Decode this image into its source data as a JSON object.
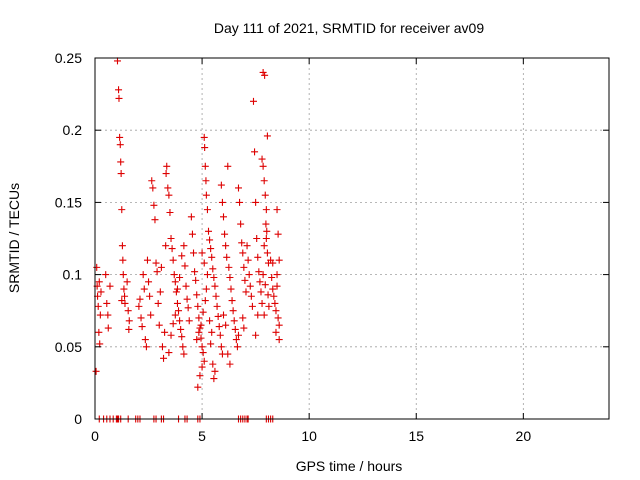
{
  "chart_data": {
    "type": "scatter",
    "title": "Day 111 of 2021, SRMTID for receiver av09",
    "xlabel": "GPS time / hours",
    "ylabel": "SRMTID / TECUs",
    "xlim": [
      0,
      24
    ],
    "ylim": [
      0,
      0.25
    ],
    "xticks": [
      0,
      5,
      10,
      15,
      20
    ],
    "xtick_labels": [
      "0",
      "5",
      "10",
      "15",
      "20"
    ],
    "yticks": [
      0,
      0.05,
      0.1,
      0.15,
      0.2,
      0.25
    ],
    "ytick_labels": [
      "0",
      "0.05",
      "0.1",
      "0.15",
      "0.2",
      "0.25"
    ],
    "grid": true,
    "marker": "+",
    "color": "#dd0000",
    "series": [
      {
        "name": "SRMTID",
        "points": [
          [
            0.05,
            0.033
          ],
          [
            0.08,
            0.105
          ],
          [
            0.1,
            0.092
          ],
          [
            0.12,
            0.085
          ],
          [
            0.15,
            0.078
          ],
          [
            0.18,
            0.06
          ],
          [
            0.2,
            0.095
          ],
          [
            0.22,
            0.052
          ],
          [
            0.25,
            0.072
          ],
          [
            0.28,
            0.088
          ],
          [
            0.5,
            0.1
          ],
          [
            0.55,
            0.08
          ],
          [
            0.6,
            0.072
          ],
          [
            0.62,
            0.063
          ],
          [
            0.7,
            0.092
          ],
          [
            1.1,
            0.228
          ],
          [
            1.12,
            0.222
          ],
          [
            1.15,
            0.195
          ],
          [
            1.18,
            0.19
          ],
          [
            1.2,
            0.178
          ],
          [
            1.22,
            0.17
          ],
          [
            1.25,
            0.145
          ],
          [
            1.05,
            0.248
          ],
          [
            1.28,
            0.12
          ],
          [
            1.3,
            0.11
          ],
          [
            1.32,
            0.1
          ],
          [
            1.35,
            0.09
          ],
          [
            1.38,
            0.085
          ],
          [
            1.4,
            0.08
          ],
          [
            1.25,
            0.082
          ],
          [
            1.5,
            0.095
          ],
          [
            1.55,
            0.075
          ],
          [
            1.6,
            0.068
          ],
          [
            1.58,
            0.062
          ],
          [
            2.05,
            0.078
          ],
          [
            2.1,
            0.083
          ],
          [
            2.15,
            0.07
          ],
          [
            2.2,
            0.064
          ],
          [
            2.25,
            0.1
          ],
          [
            2.3,
            0.09
          ],
          [
            2.35,
            0.055
          ],
          [
            2.4,
            0.05
          ],
          [
            2.45,
            0.11
          ],
          [
            2.5,
            0.095
          ],
          [
            2.55,
            0.085
          ],
          [
            2.6,
            0.072
          ],
          [
            2.65,
            0.165
          ],
          [
            2.7,
            0.16
          ],
          [
            2.75,
            0.148
          ],
          [
            2.8,
            0.138
          ],
          [
            2.85,
            0.108
          ],
          [
            2.9,
            0.102
          ],
          [
            2.95,
            0.08
          ],
          [
            3.0,
            0.065
          ],
          [
            3.05,
            0.088
          ],
          [
            3.1,
            0.105
          ],
          [
            3.15,
            0.05
          ],
          [
            3.2,
            0.042
          ],
          [
            3.25,
            0.06
          ],
          [
            3.3,
            0.12
          ],
          [
            3.32,
            0.17
          ],
          [
            3.35,
            0.175
          ],
          [
            3.4,
            0.16
          ],
          [
            3.45,
            0.155
          ],
          [
            3.5,
            0.143
          ],
          [
            3.55,
            0.125
          ],
          [
            3.6,
            0.118
          ],
          [
            3.65,
            0.11
          ],
          [
            3.7,
            0.1
          ],
          [
            3.75,
            0.095
          ],
          [
            3.8,
            0.088
          ],
          [
            3.85,
            0.08
          ],
          [
            3.9,
            0.075
          ],
          [
            3.95,
            0.068
          ],
          [
            4.0,
            0.062
          ],
          [
            4.05,
            0.057
          ],
          [
            4.1,
            0.05
          ],
          [
            4.15,
            0.045
          ],
          [
            3.45,
            0.046
          ],
          [
            3.55,
            0.058
          ],
          [
            3.65,
            0.066
          ],
          [
            3.75,
            0.072
          ],
          [
            3.85,
            0.09
          ],
          [
            3.95,
            0.098
          ],
          [
            4.05,
            0.113
          ],
          [
            4.15,
            0.12
          ],
          [
            4.2,
            0.106
          ],
          [
            4.25,
            0.092
          ],
          [
            4.3,
            0.083
          ],
          [
            4.35,
            0.077
          ],
          [
            4.4,
            0.068
          ],
          [
            4.5,
            0.14
          ],
          [
            4.55,
            0.128
          ],
          [
            4.6,
            0.115
          ],
          [
            4.65,
            0.102
          ],
          [
            4.7,
            0.096
          ],
          [
            4.75,
            0.086
          ],
          [
            4.8,
            0.078
          ],
          [
            4.85,
            0.07
          ],
          [
            4.9,
            0.063
          ],
          [
            4.95,
            0.056
          ],
          [
            5.0,
            0.05
          ],
          [
            5.05,
            0.046
          ],
          [
            5.1,
            0.04
          ],
          [
            4.8,
            0.022
          ],
          [
            4.9,
            0.03
          ],
          [
            5.0,
            0.036
          ],
          [
            4.75,
            0.055
          ],
          [
            4.85,
            0.06
          ],
          [
            4.95,
            0.065
          ],
          [
            5.05,
            0.074
          ],
          [
            5.15,
            0.082
          ],
          [
            5.2,
            0.09
          ],
          [
            5.25,
            0.1
          ],
          [
            5.1,
            0.108
          ],
          [
            5.0,
            0.115
          ],
          [
            5.1,
            0.195
          ],
          [
            5.12,
            0.188
          ],
          [
            5.15,
            0.175
          ],
          [
            5.18,
            0.165
          ],
          [
            5.2,
            0.155
          ],
          [
            5.25,
            0.145
          ],
          [
            5.3,
            0.13
          ],
          [
            5.35,
            0.124
          ],
          [
            5.4,
            0.118
          ],
          [
            5.45,
            0.112
          ],
          [
            5.5,
            0.104
          ],
          [
            5.55,
            0.098
          ],
          [
            5.6,
            0.092
          ],
          [
            5.65,
            0.085
          ],
          [
            5.7,
            0.078
          ],
          [
            5.75,
            0.071
          ],
          [
            5.8,
            0.064
          ],
          [
            5.85,
            0.058
          ],
          [
            5.9,
            0.05
          ],
          [
            5.95,
            0.045
          ],
          [
            5.5,
            0.038
          ],
          [
            5.55,
            0.028
          ],
          [
            5.6,
            0.033
          ],
          [
            5.4,
            0.052
          ],
          [
            5.45,
            0.06
          ],
          [
            5.35,
            0.068
          ],
          [
            5.9,
            0.162
          ],
          [
            5.95,
            0.15
          ],
          [
            6.0,
            0.14
          ],
          [
            6.05,
            0.128
          ],
          [
            6.1,
            0.12
          ],
          [
            6.15,
            0.112
          ],
          [
            6.2,
            0.175
          ],
          [
            6.25,
            0.105
          ],
          [
            6.3,
            0.098
          ],
          [
            6.35,
            0.09
          ],
          [
            6.4,
            0.082
          ],
          [
            6.45,
            0.075
          ],
          [
            6.5,
            0.068
          ],
          [
            6.55,
            0.062
          ],
          [
            6.6,
            0.055
          ],
          [
            6.65,
            0.05
          ],
          [
            6.7,
            0.058
          ],
          [
            6.2,
            0.045
          ],
          [
            6.3,
            0.038
          ],
          [
            6.1,
            0.065
          ],
          [
            6.0,
            0.072
          ],
          [
            6.7,
            0.16
          ],
          [
            6.75,
            0.15
          ],
          [
            6.8,
            0.135
          ],
          [
            6.85,
            0.122
          ],
          [
            6.9,
            0.115
          ],
          [
            6.95,
            0.105
          ],
          [
            7.0,
            0.096
          ],
          [
            7.05,
            0.088
          ],
          [
            7.1,
            0.12
          ],
          [
            7.15,
            0.11
          ],
          [
            7.2,
            0.1
          ],
          [
            7.25,
            0.092
          ],
          [
            7.3,
            0.085
          ],
          [
            7.35,
            0.078
          ],
          [
            6.9,
            0.07
          ],
          [
            6.95,
            0.063
          ],
          [
            7.4,
            0.22
          ],
          [
            7.45,
            0.185
          ],
          [
            7.5,
            0.15
          ],
          [
            7.55,
            0.125
          ],
          [
            7.6,
            0.112
          ],
          [
            7.65,
            0.102
          ],
          [
            7.7,
            0.095
          ],
          [
            7.75,
            0.088
          ],
          [
            7.8,
            0.08
          ],
          [
            7.5,
            0.058
          ],
          [
            7.6,
            0.072
          ],
          [
            7.8,
            0.18
          ],
          [
            7.85,
            0.175
          ],
          [
            7.9,
            0.165
          ],
          [
            7.95,
            0.155
          ],
          [
            8.0,
            0.145
          ],
          [
            8.05,
            0.196
          ],
          [
            7.98,
            0.135
          ],
          [
            8.02,
            0.13
          ],
          [
            8.0,
            0.125
          ],
          [
            7.9,
            0.12
          ],
          [
            8.05,
            0.115
          ],
          [
            8.1,
            0.108
          ],
          [
            7.85,
            0.1
          ],
          [
            7.95,
            0.093
          ],
          [
            8.08,
            0.086
          ],
          [
            8.12,
            0.078
          ],
          [
            7.9,
            0.072
          ],
          [
            7.85,
            0.24
          ],
          [
            7.92,
            0.238
          ],
          [
            8.2,
            0.11
          ],
          [
            8.25,
            0.098
          ],
          [
            8.3,
            0.09
          ],
          [
            8.35,
            0.085
          ],
          [
            8.4,
            0.08
          ],
          [
            8.45,
            0.075
          ],
          [
            8.5,
            0.145
          ],
          [
            8.55,
            0.128
          ],
          [
            8.6,
            0.11
          ],
          [
            8.5,
            0.1
          ],
          [
            8.55,
            0.07
          ],
          [
            8.6,
            0.065
          ],
          [
            8.45,
            0.06
          ],
          [
            8.6,
            0.055
          ],
          [
            8.5,
            0.092
          ],
          [
            8.3,
            0.108
          ],
          [
            0.2,
            0
          ],
          [
            0.4,
            0
          ],
          [
            0.55,
            0
          ],
          [
            0.7,
            0
          ],
          [
            0.85,
            0
          ],
          [
            1.0,
            0
          ],
          [
            1.05,
            0
          ],
          [
            1.1,
            0
          ],
          [
            1.2,
            0
          ],
          [
            1.55,
            0
          ],
          [
            1.9,
            0
          ],
          [
            2.0,
            0
          ],
          [
            2.1,
            0
          ],
          [
            2.75,
            0
          ],
          [
            2.85,
            0
          ],
          [
            3.1,
            0
          ],
          [
            3.2,
            0
          ],
          [
            3.9,
            0
          ],
          [
            4.2,
            0
          ],
          [
            4.3,
            0
          ],
          [
            4.8,
            0
          ],
          [
            4.9,
            0
          ],
          [
            6.7,
            0
          ],
          [
            6.8,
            0
          ],
          [
            6.9,
            0
          ],
          [
            7.0,
            0
          ],
          [
            7.1,
            0
          ],
          [
            7.15,
            0
          ],
          [
            8.0,
            0
          ],
          [
            8.1,
            0
          ],
          [
            8.2,
            0
          ],
          [
            8.3,
            0
          ]
        ]
      }
    ]
  }
}
